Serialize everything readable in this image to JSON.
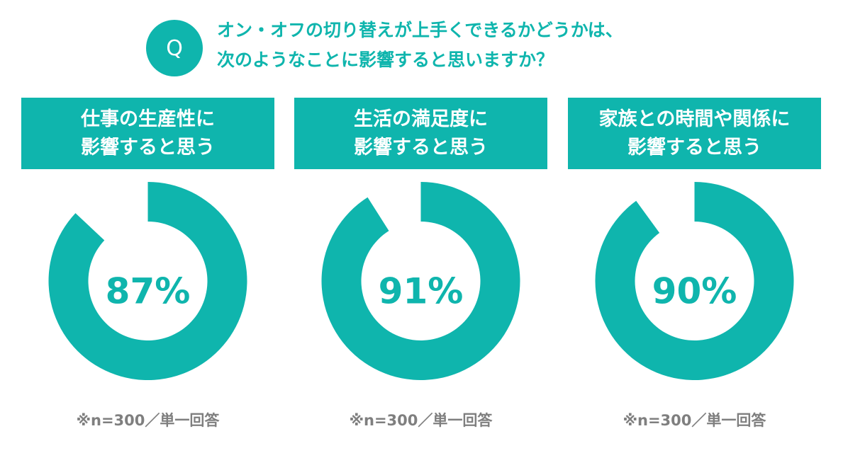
{
  "colors": {
    "accent": "#0fb5ad",
    "note": "#7f7f7f"
  },
  "question": {
    "badge": "Q",
    "line1": "オン・オフの切り替えが上手くできるかどうかは、",
    "line2": "次のようなことに影響すると思いますか？"
  },
  "chart_data": [
    {
      "type": "pie",
      "title_line1": "仕事の生産性に",
      "title_line2": "影響すると思う",
      "values": [
        87
      ],
      "unit": "%",
      "label": "87%",
      "note": "※n=300／単一回答"
    },
    {
      "type": "pie",
      "title_line1": "生活の満足度に",
      "title_line2": "影響すると思う",
      "values": [
        91
      ],
      "unit": "%",
      "label": "91%",
      "note": "※n=300／単一回答"
    },
    {
      "type": "pie",
      "title_line1": "家族との時間や関係に",
      "title_line2": "影響すると思う",
      "values": [
        90
      ],
      "unit": "%",
      "label": "90%",
      "note": "※n=300／単一回答"
    }
  ]
}
